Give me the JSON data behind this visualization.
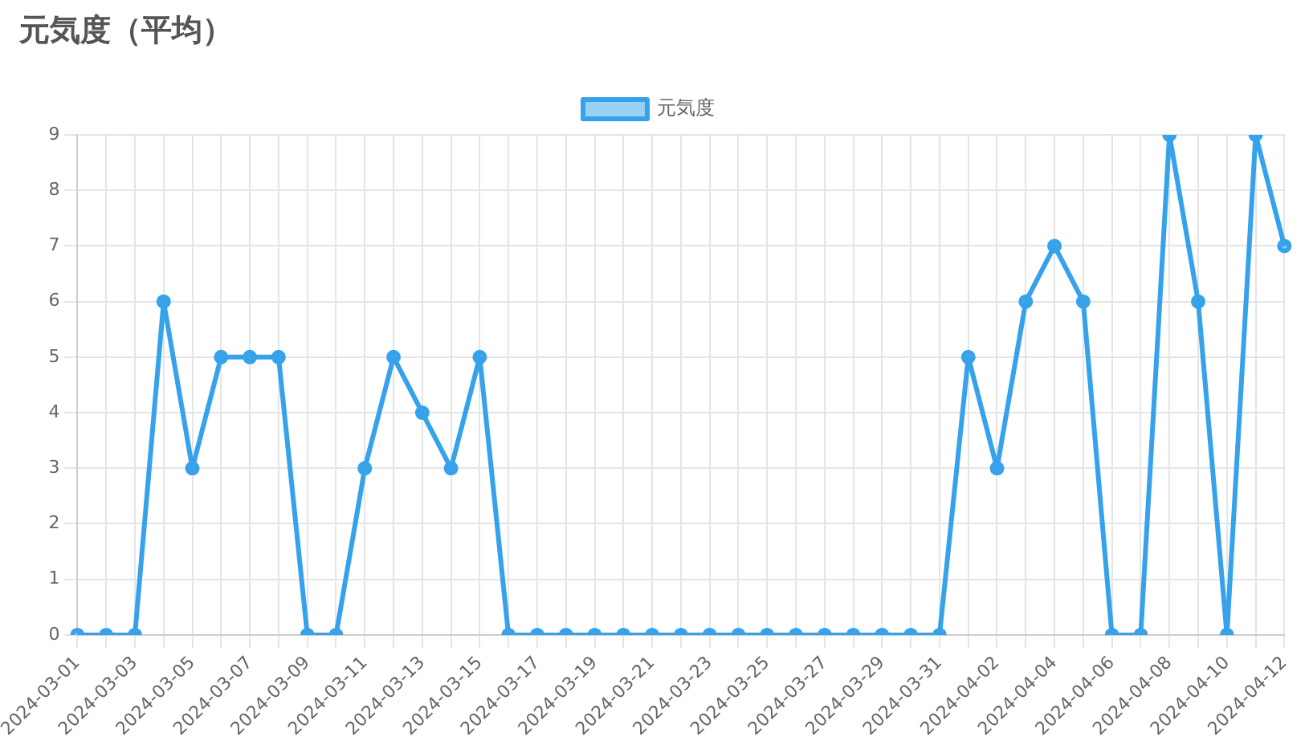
{
  "chart_data": {
    "type": "line",
    "title": "元気度（平均）",
    "categories": [
      "2024-03-01",
      null,
      "2024-03-03",
      null,
      "2024-03-05",
      null,
      "2024-03-07",
      null,
      "2024-03-09",
      null,
      "2024-03-11",
      null,
      "2024-03-13",
      null,
      "2024-03-15",
      null,
      "2024-03-17",
      null,
      "2024-03-19",
      null,
      "2024-03-21",
      null,
      "2024-03-23",
      null,
      "2024-03-25",
      null,
      "2024-03-27",
      null,
      "2024-03-29",
      null,
      "2024-03-31",
      null,
      "2024-04-02",
      null,
      "2024-04-04",
      null,
      "2024-04-06",
      null,
      "2024-04-08",
      null,
      "2024-04-10",
      null,
      "2024-04-12"
    ],
    "series": [
      {
        "name": "元気度",
        "color": "#36a2eb",
        "values": [
          0,
          0,
          0,
          6,
          3,
          5,
          5,
          5,
          0,
          0,
          3,
          5,
          4,
          3,
          5,
          0,
          0,
          0,
          0,
          0,
          0,
          0,
          0,
          0,
          0,
          0,
          0,
          0,
          0,
          0,
          0,
          5,
          3,
          6,
          7,
          6,
          0,
          0,
          9,
          6,
          0,
          9,
          7
        ]
      }
    ],
    "ylim": [
      0,
      9
    ],
    "yticks": [
      0,
      1,
      2,
      3,
      4,
      5,
      6,
      7,
      8,
      9
    ],
    "grid": true,
    "legend": "top",
    "marker": "circle",
    "line_style": "solid"
  }
}
